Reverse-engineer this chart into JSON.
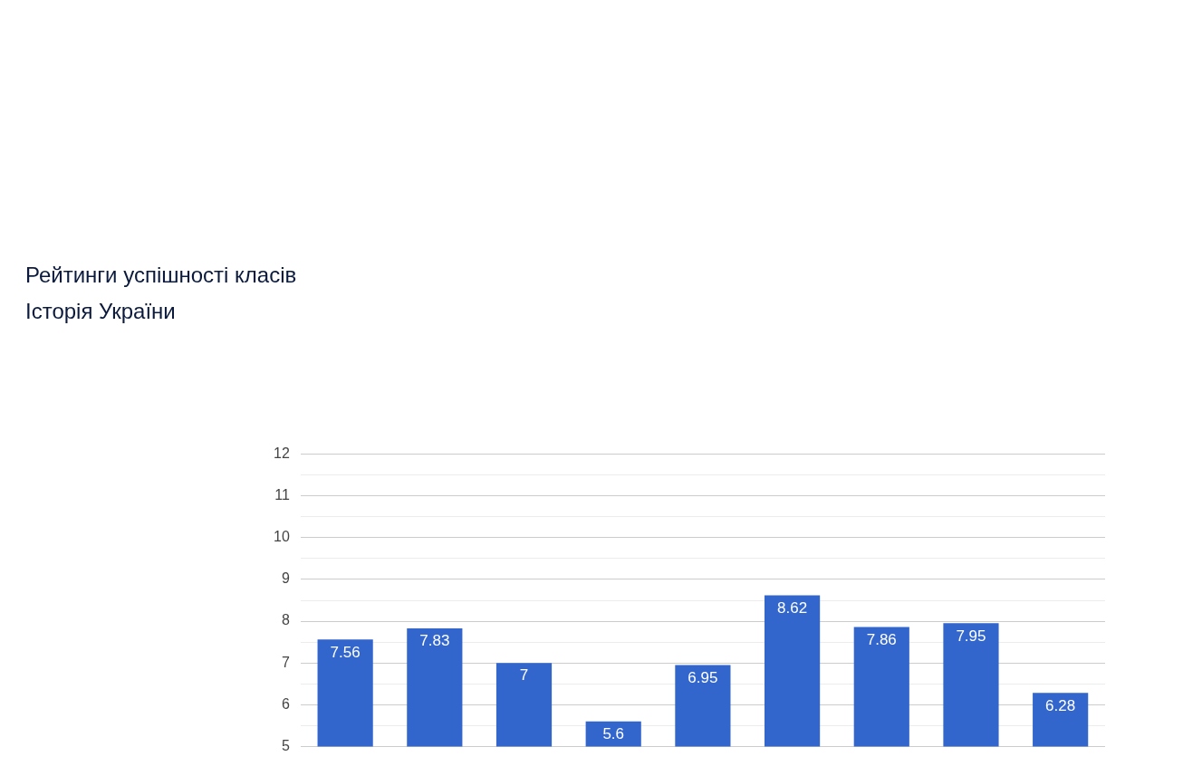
{
  "chart_data": {
    "type": "bar",
    "title": "Рейтинги успішності класів",
    "subtitle": "Історія України",
    "categories": [
      null,
      null,
      null,
      null,
      null,
      null,
      null,
      null,
      null
    ],
    "values": [
      7.56,
      7.83,
      7,
      5.6,
      6.95,
      8.62,
      7.86,
      7.95,
      6.28
    ],
    "color": "#3366cc",
    "data_labels": true,
    "grid": "y",
    "ylim": [
      5,
      12
    ],
    "yticks": [
      5,
      {
        "value": 5.5,
        "label": null
      },
      6,
      {
        "value": 6.5,
        "label": null
      },
      7,
      {
        "value": 7.5,
        "label": null
      },
      8,
      {
        "value": 8.5,
        "label": null
      },
      9,
      {
        "value": 9.5,
        "label": null
      },
      10,
      {
        "value": 10.5,
        "label": null
      },
      11,
      {
        "value": 11.5,
        "label": null
      },
      12
    ],
    "tick_labels": "y",
    "legend": false
  }
}
